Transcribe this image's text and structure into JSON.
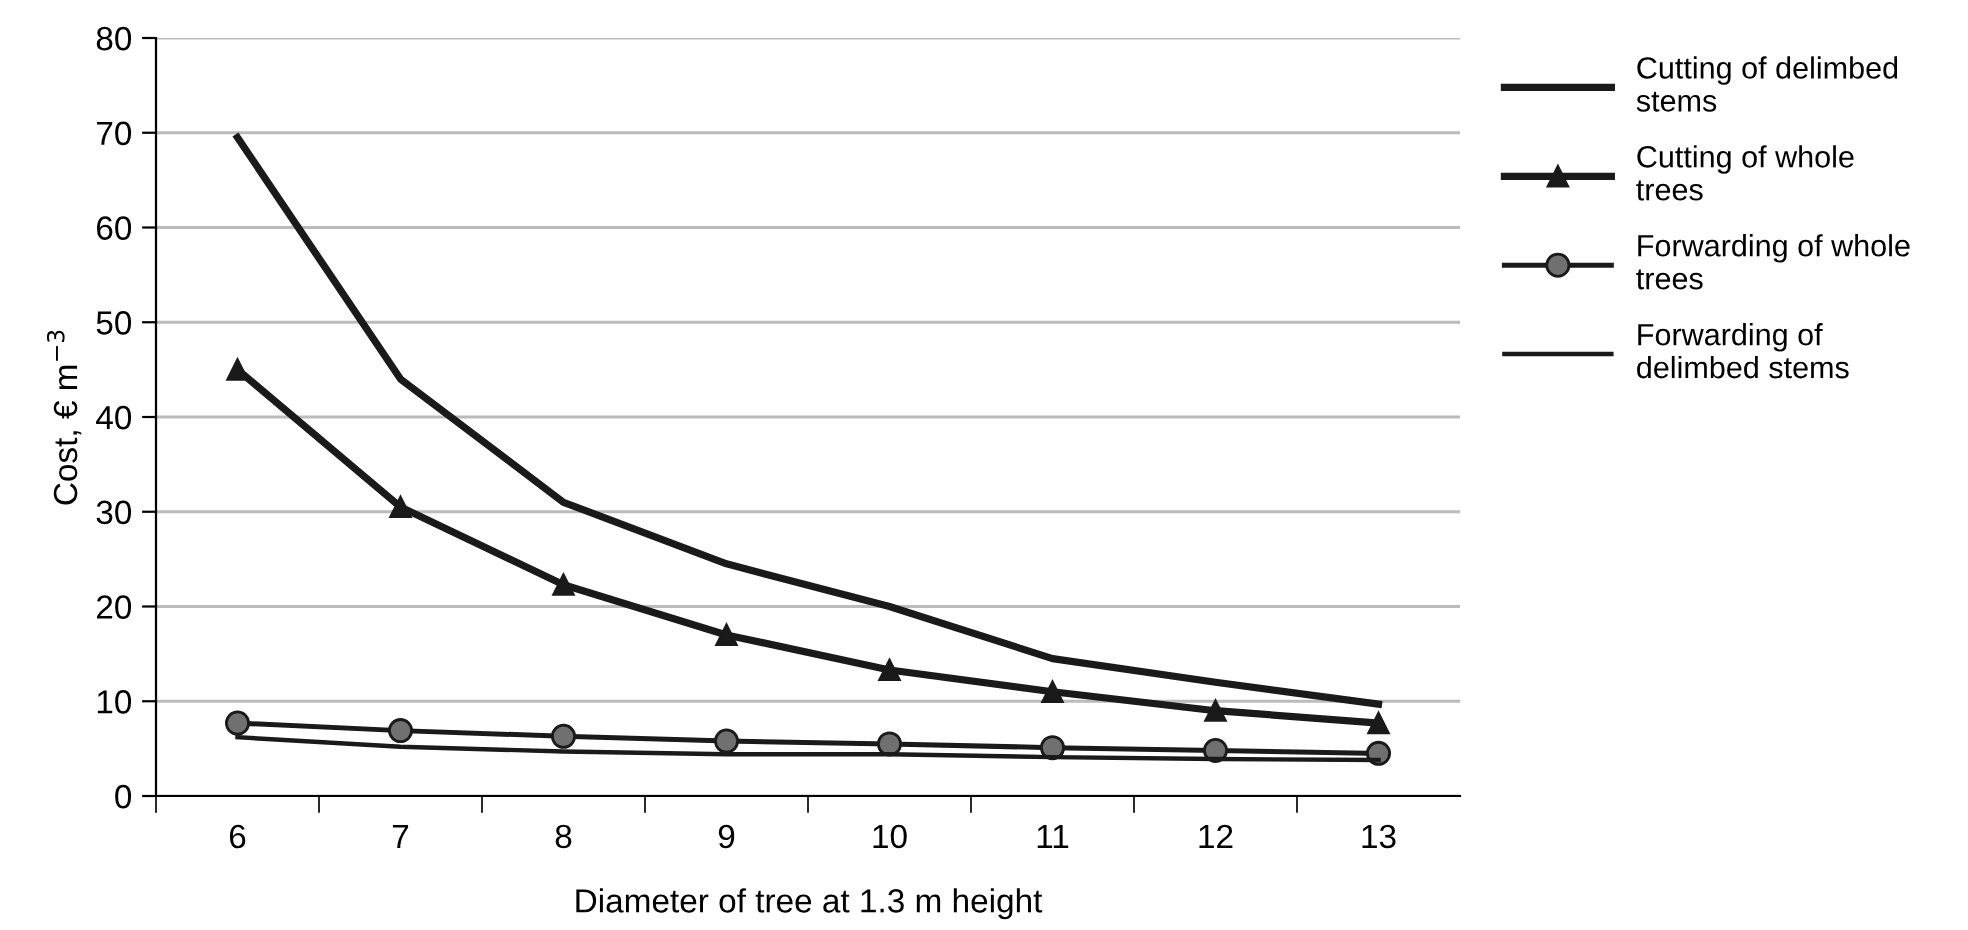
{
  "chart_data": {
    "type": "line",
    "xlabel": "Diameter of tree at 1.3 m height",
    "ylabel": "Cost, € m$^{−3}$",
    "categories": [
      "6",
      "7",
      "8",
      "9",
      "10",
      "11",
      "12",
      "13"
    ],
    "series": [
      {
        "name": "Cutting of delimbed stems",
        "color": "#1a1a1a",
        "marker": "none",
        "values": [
          69.5,
          44,
          31,
          24.5,
          20,
          14.5,
          12,
          9.7
        ]
      },
      {
        "name": "Cutting of whole trees",
        "color": "#1a1a1a",
        "marker": "triangle",
        "values": [
          45,
          30.5,
          22.3,
          17,
          13.3,
          11,
          9,
          7.7
        ]
      },
      {
        "name": "Forwarding of whole trees",
        "color": "#1a1a1a",
        "marker": "circle",
        "values": [
          7.7,
          6.9,
          6.3,
          5.8,
          5.5,
          5.1,
          4.8,
          4.5
        ]
      },
      {
        "name": "Forwarding of delimbed stems",
        "color": "#1a1a1a",
        "marker": "none",
        "values": [
          6.2,
          5.2,
          4.7,
          4.4,
          4.4,
          4.1,
          3.9,
          3.8
        ]
      }
    ],
    "ylim": [
      0,
      80
    ],
    "yticks": [
      0,
      10,
      20,
      30,
      40,
      50,
      60,
      70,
      80
    ],
    "grid": "y",
    "legend": "right"
  }
}
